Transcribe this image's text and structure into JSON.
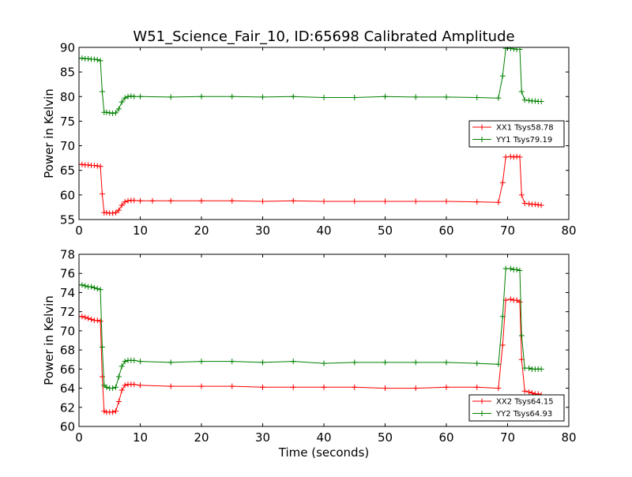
{
  "chart_data": {
    "type": "line",
    "title": "W51_Science_Fair_10, ID:65698 Calibrated Amplitude",
    "xlabel": "Time (seconds)",
    "colors": {
      "red": "#ff0000",
      "green": "#008000"
    },
    "panels": [
      {
        "ylabel": "Power in Kelvin",
        "xlim": [
          0,
          80
        ],
        "ylim": [
          55,
          90
        ],
        "xticks": [
          "0",
          "10",
          "20",
          "30",
          "40",
          "50",
          "60",
          "70",
          "80"
        ],
        "yticks": [
          "55",
          "60",
          "65",
          "70",
          "75",
          "80",
          "85",
          "90"
        ],
        "legend_position": "center-right",
        "series": [
          {
            "name": "XX1 Tsys58.78",
            "color": "#ff0000",
            "points": [
              [
                0,
                66.2
              ],
              [
                0.5,
                66.2
              ],
              [
                1,
                66.1
              ],
              [
                1.5,
                66.1
              ],
              [
                2,
                66.0
              ],
              [
                2.5,
                66.0
              ],
              [
                3,
                65.9
              ],
              [
                3.5,
                65.8
              ],
              [
                3.8,
                60.2
              ],
              [
                4.1,
                56.4
              ],
              [
                4.5,
                56.4
              ],
              [
                5,
                56.3
              ],
              [
                5.5,
                56.3
              ],
              [
                6,
                56.4
              ],
              [
                6.5,
                56.9
              ],
              [
                7,
                57.9
              ],
              [
                7.5,
                58.6
              ],
              [
                8,
                58.8
              ],
              [
                8.5,
                58.9
              ],
              [
                9,
                58.9
              ],
              [
                10,
                58.8
              ],
              [
                12,
                58.8
              ],
              [
                15,
                58.8
              ],
              [
                20,
                58.8
              ],
              [
                25,
                58.8
              ],
              [
                30,
                58.7
              ],
              [
                35,
                58.8
              ],
              [
                40,
                58.7
              ],
              [
                45,
                58.7
              ],
              [
                50,
                58.7
              ],
              [
                55,
                58.7
              ],
              [
                60,
                58.7
              ],
              [
                65,
                58.6
              ],
              [
                68.5,
                58.5
              ],
              [
                69.2,
                62.5
              ],
              [
                69.7,
                67.7
              ],
              [
                70.5,
                67.8
              ],
              [
                71,
                67.7
              ],
              [
                71.5,
                67.8
              ],
              [
                72,
                67.7
              ],
              [
                72.3,
                60.0
              ],
              [
                72.8,
                58.3
              ],
              [
                73.5,
                58.2
              ],
              [
                74,
                58.1
              ],
              [
                74.5,
                58.1
              ],
              [
                75,
                58.0
              ],
              [
                75.5,
                57.9
              ]
            ]
          },
          {
            "name": "YY1 Tsys79.19",
            "color": "#008000",
            "points": [
              [
                0,
                87.8
              ],
              [
                0.5,
                87.8
              ],
              [
                1,
                87.7
              ],
              [
                1.5,
                87.7
              ],
              [
                2,
                87.6
              ],
              [
                2.5,
                87.6
              ],
              [
                3,
                87.5
              ],
              [
                3.5,
                87.3
              ],
              [
                3.8,
                81.0
              ],
              [
                4.1,
                76.8
              ],
              [
                4.5,
                76.8
              ],
              [
                5,
                76.7
              ],
              [
                5.5,
                76.6
              ],
              [
                6,
                76.7
              ],
              [
                6.5,
                77.5
              ],
              [
                7,
                78.9
              ],
              [
                7.5,
                79.7
              ],
              [
                8,
                80.0
              ],
              [
                8.5,
                80.1
              ],
              [
                9,
                80.0
              ],
              [
                10,
                80.0
              ],
              [
                15,
                79.9
              ],
              [
                20,
                80.0
              ],
              [
                25,
                80.0
              ],
              [
                30,
                79.9
              ],
              [
                35,
                80.0
              ],
              [
                40,
                79.8
              ],
              [
                45,
                79.8
              ],
              [
                50,
                80.0
              ],
              [
                55,
                79.9
              ],
              [
                60,
                79.9
              ],
              [
                65,
                79.8
              ],
              [
                68.5,
                79.7
              ],
              [
                69.2,
                84.2
              ],
              [
                69.7,
                89.8
              ],
              [
                70.5,
                89.8
              ],
              [
                71,
                89.7
              ],
              [
                71.5,
                89.6
              ],
              [
                72,
                89.6
              ],
              [
                72.3,
                81.0
              ],
              [
                72.8,
                79.3
              ],
              [
                73.5,
                79.2
              ],
              [
                74,
                79.1
              ],
              [
                74.5,
                79.1
              ],
              [
                75,
                79.0
              ],
              [
                75.5,
                79.0
              ]
            ]
          }
        ]
      },
      {
        "ylabel": "Power in Kelvin",
        "xlim": [
          0,
          80
        ],
        "ylim": [
          60,
          78
        ],
        "xticks": [
          "0",
          "10",
          "20",
          "30",
          "40",
          "50",
          "60",
          "70",
          "80"
        ],
        "yticks": [
          "60",
          "62",
          "64",
          "66",
          "68",
          "70",
          "72",
          "74",
          "76",
          "78"
        ],
        "legend_position": "lower-right",
        "series": [
          {
            "name": "XX2 Tsys64.15",
            "color": "#ff0000",
            "points": [
              [
                0,
                71.5
              ],
              [
                0.5,
                71.5
              ],
              [
                1,
                71.4
              ],
              [
                1.5,
                71.3
              ],
              [
                2,
                71.2
              ],
              [
                2.5,
                71.1
              ],
              [
                3,
                71.1
              ],
              [
                3.5,
                71.0
              ],
              [
                3.8,
                65.2
              ],
              [
                4.1,
                61.6
              ],
              [
                4.5,
                61.5
              ],
              [
                5,
                61.5
              ],
              [
                5.5,
                61.5
              ],
              [
                6,
                61.6
              ],
              [
                6.5,
                62.6
              ],
              [
                7,
                63.8
              ],
              [
                7.5,
                64.3
              ],
              [
                8,
                64.4
              ],
              [
                8.5,
                64.4
              ],
              [
                9,
                64.4
              ],
              [
                10,
                64.3
              ],
              [
                15,
                64.2
              ],
              [
                20,
                64.2
              ],
              [
                25,
                64.2
              ],
              [
                30,
                64.1
              ],
              [
                35,
                64.1
              ],
              [
                40,
                64.1
              ],
              [
                45,
                64.1
              ],
              [
                50,
                64.0
              ],
              [
                55,
                64.0
              ],
              [
                60,
                64.1
              ],
              [
                65,
                64.1
              ],
              [
                68.5,
                64.0
              ],
              [
                69.2,
                68.5
              ],
              [
                69.7,
                73.2
              ],
              [
                70.5,
                73.3
              ],
              [
                71,
                73.2
              ],
              [
                71.5,
                73.2
              ],
              [
                72,
                73.0
              ],
              [
                72.3,
                67.0
              ],
              [
                72.8,
                63.7
              ],
              [
                73.5,
                63.6
              ],
              [
                74,
                63.5
              ],
              [
                74.5,
                63.4
              ],
              [
                75,
                63.4
              ],
              [
                75.5,
                63.3
              ]
            ]
          },
          {
            "name": "YY2 Tsys64.93",
            "color": "#008000",
            "points": [
              [
                0,
                74.8
              ],
              [
                0.5,
                74.8
              ],
              [
                1,
                74.7
              ],
              [
                1.5,
                74.6
              ],
              [
                2,
                74.6
              ],
              [
                2.5,
                74.5
              ],
              [
                3,
                74.4
              ],
              [
                3.5,
                74.3
              ],
              [
                3.8,
                68.3
              ],
              [
                4.1,
                64.3
              ],
              [
                4.5,
                64.1
              ],
              [
                5,
                64.0
              ],
              [
                5.5,
                64.0
              ],
              [
                6,
                64.1
              ],
              [
                6.5,
                65.2
              ],
              [
                7,
                66.3
              ],
              [
                7.5,
                66.8
              ],
              [
                8,
                66.9
              ],
              [
                8.5,
                66.9
              ],
              [
                9,
                66.9
              ],
              [
                10,
                66.8
              ],
              [
                15,
                66.7
              ],
              [
                20,
                66.8
              ],
              [
                25,
                66.8
              ],
              [
                30,
                66.7
              ],
              [
                35,
                66.8
              ],
              [
                40,
                66.6
              ],
              [
                45,
                66.7
              ],
              [
                50,
                66.7
              ],
              [
                55,
                66.7
              ],
              [
                60,
                66.7
              ],
              [
                65,
                66.6
              ],
              [
                68.5,
                66.5
              ],
              [
                69.2,
                71.5
              ],
              [
                69.7,
                76.5
              ],
              [
                70.5,
                76.5
              ],
              [
                71,
                76.4
              ],
              [
                71.5,
                76.4
              ],
              [
                72,
                76.3
              ],
              [
                72.3,
                69.5
              ],
              [
                72.8,
                66.1
              ],
              [
                73.5,
                66.1
              ],
              [
                74,
                66.0
              ],
              [
                74.5,
                66.0
              ],
              [
                75,
                66.0
              ],
              [
                75.5,
                66.0
              ]
            ]
          }
        ]
      }
    ]
  }
}
